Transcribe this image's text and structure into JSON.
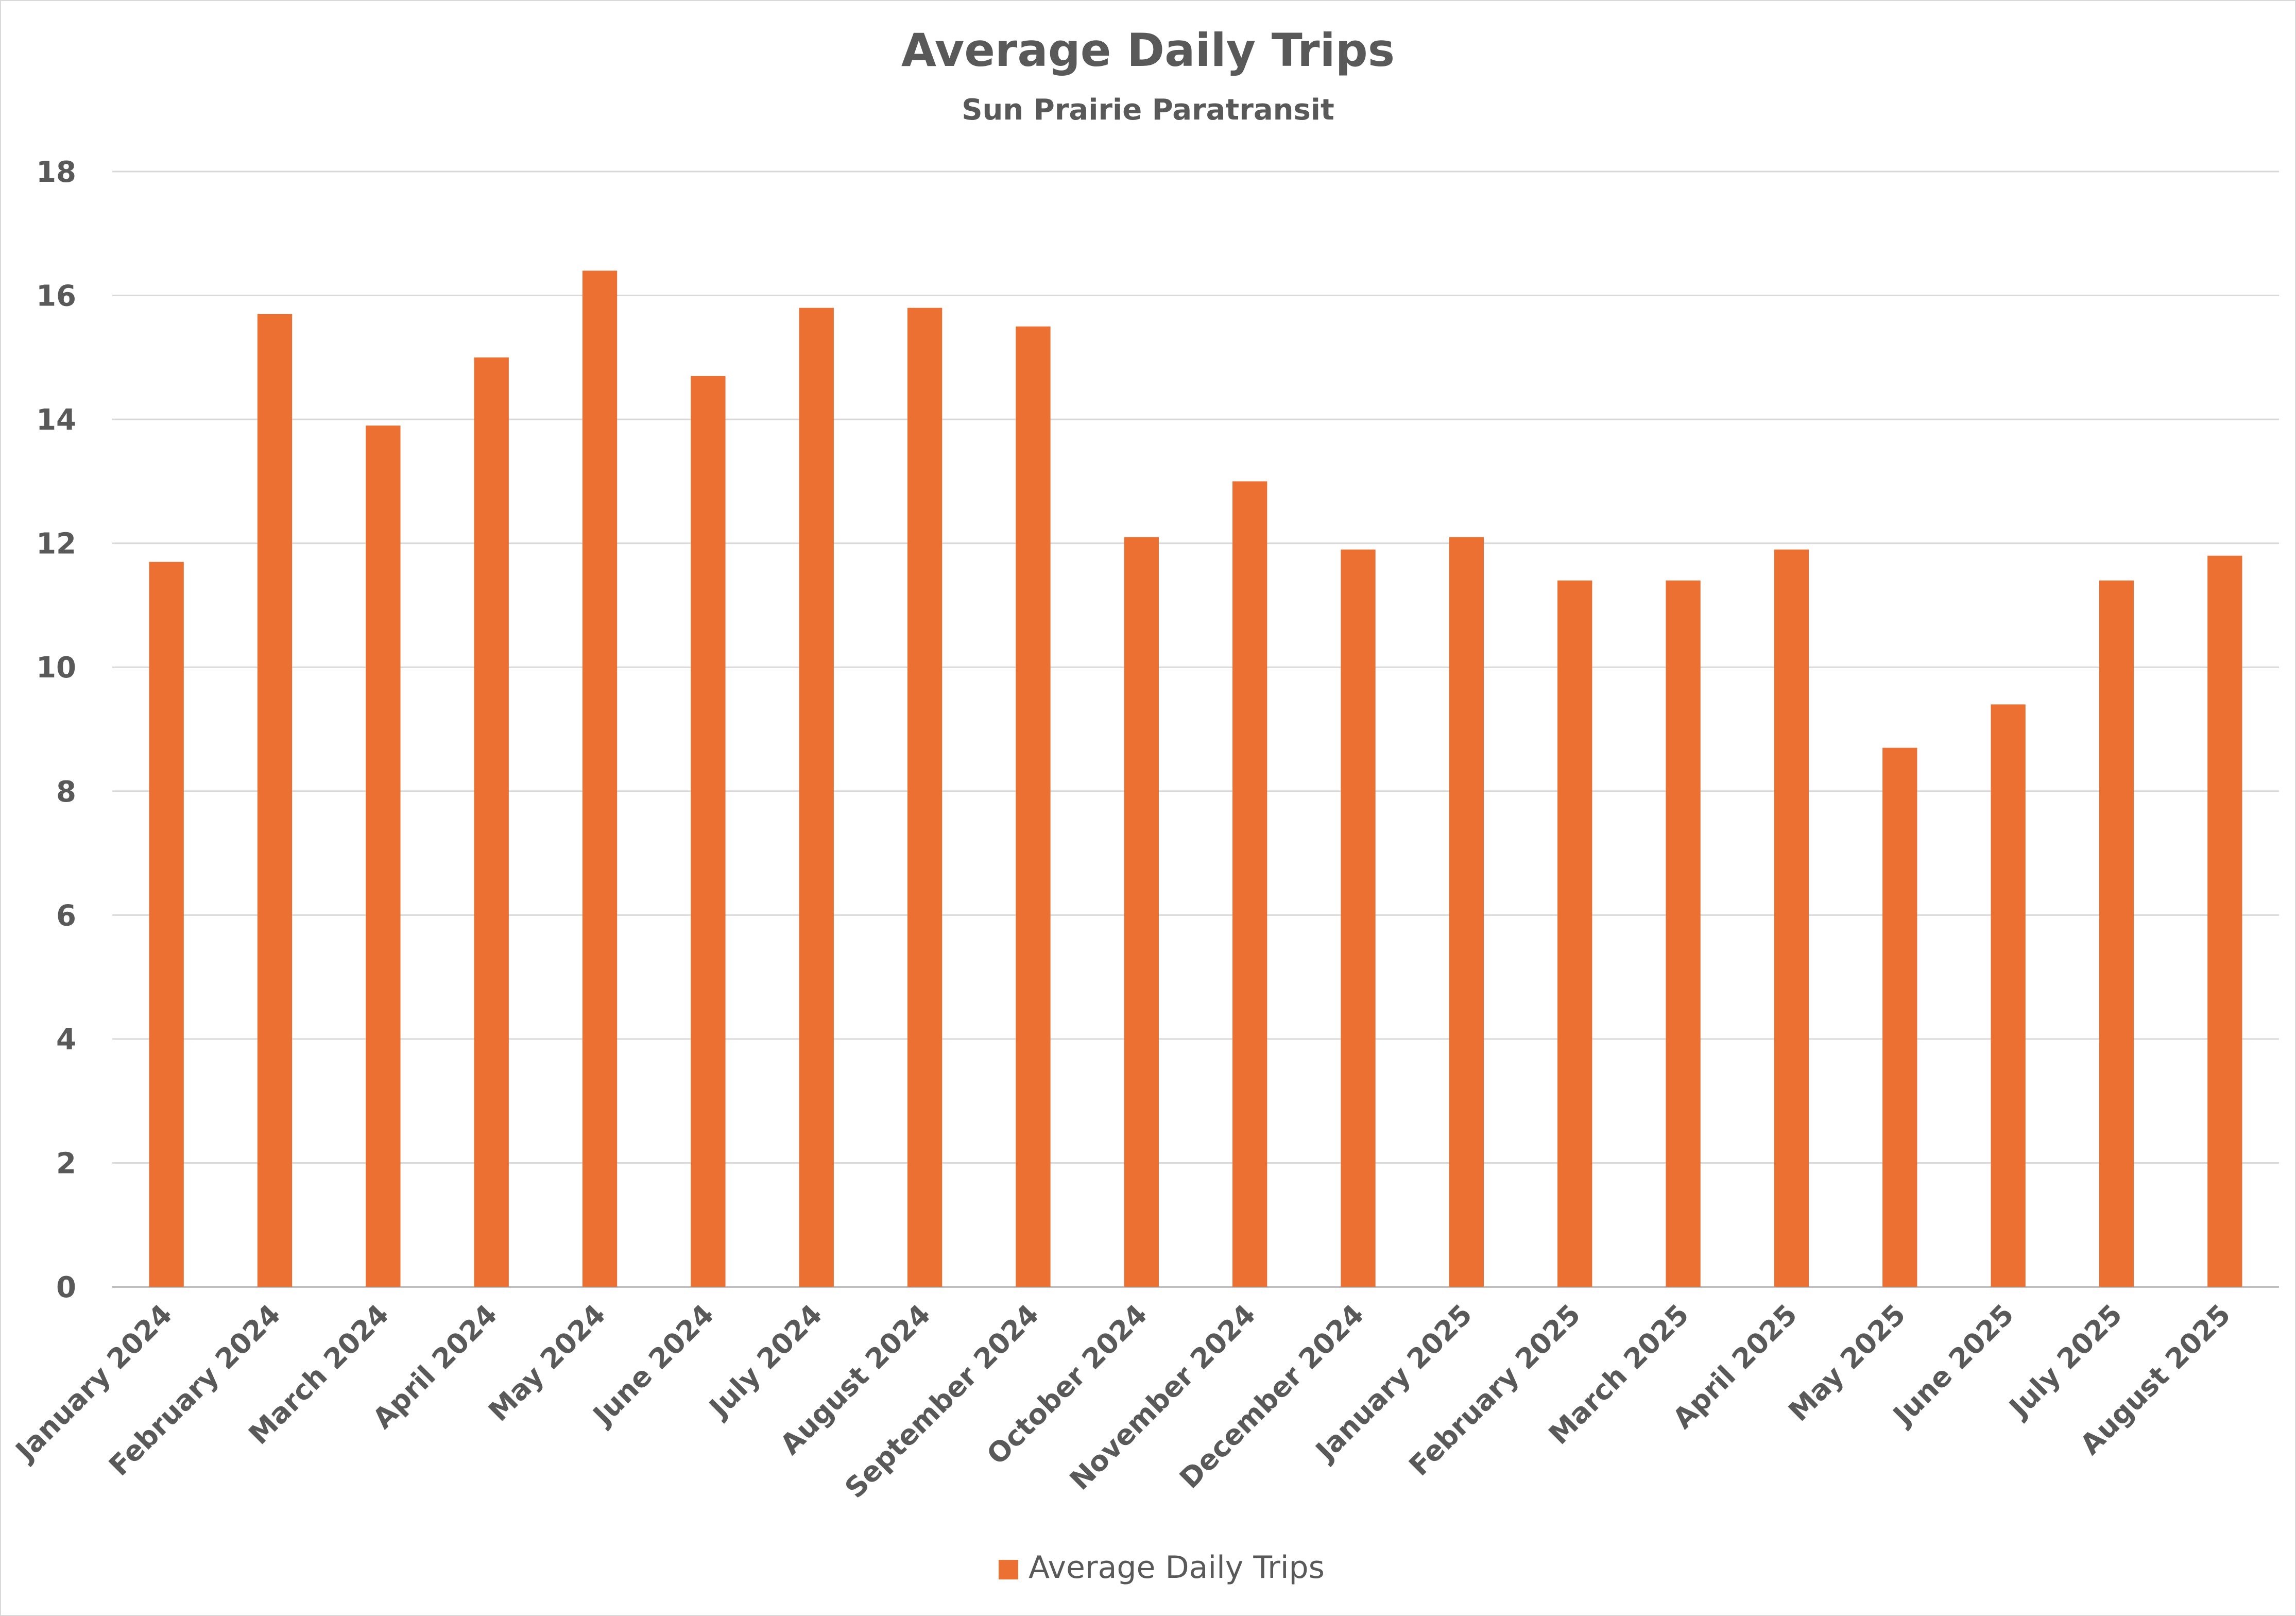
{
  "chart_data": {
    "type": "bar",
    "title": "Average Daily Trips",
    "subtitle": "Sun Prairie Paratransit",
    "xlabel": "",
    "ylabel": "",
    "ylim": [
      0,
      18
    ],
    "yticks": [
      0,
      2,
      4,
      6,
      8,
      10,
      12,
      14,
      16,
      18
    ],
    "grid": true,
    "legend_position": "bottom",
    "categories": [
      "January 2024",
      "February 2024",
      "March 2024",
      "April 2024",
      "May 2024",
      "June 2024",
      "July 2024",
      "August 2024",
      "September 2024",
      "October 2024",
      "November 2024",
      "December 2024",
      "January 2025",
      "February 2025",
      "March 2025",
      "April 2025",
      "May 2025",
      "June 2025",
      "July 2025",
      "August 2025"
    ],
    "series": [
      {
        "name": "Average Daily Trips",
        "color": "#ed7033",
        "values": [
          11.7,
          15.7,
          13.9,
          15.0,
          16.4,
          14.7,
          15.8,
          15.8,
          15.5,
          12.1,
          13.0,
          11.9,
          12.1,
          11.4,
          11.4,
          11.9,
          8.7,
          9.4,
          11.4,
          11.8
        ]
      }
    ]
  }
}
